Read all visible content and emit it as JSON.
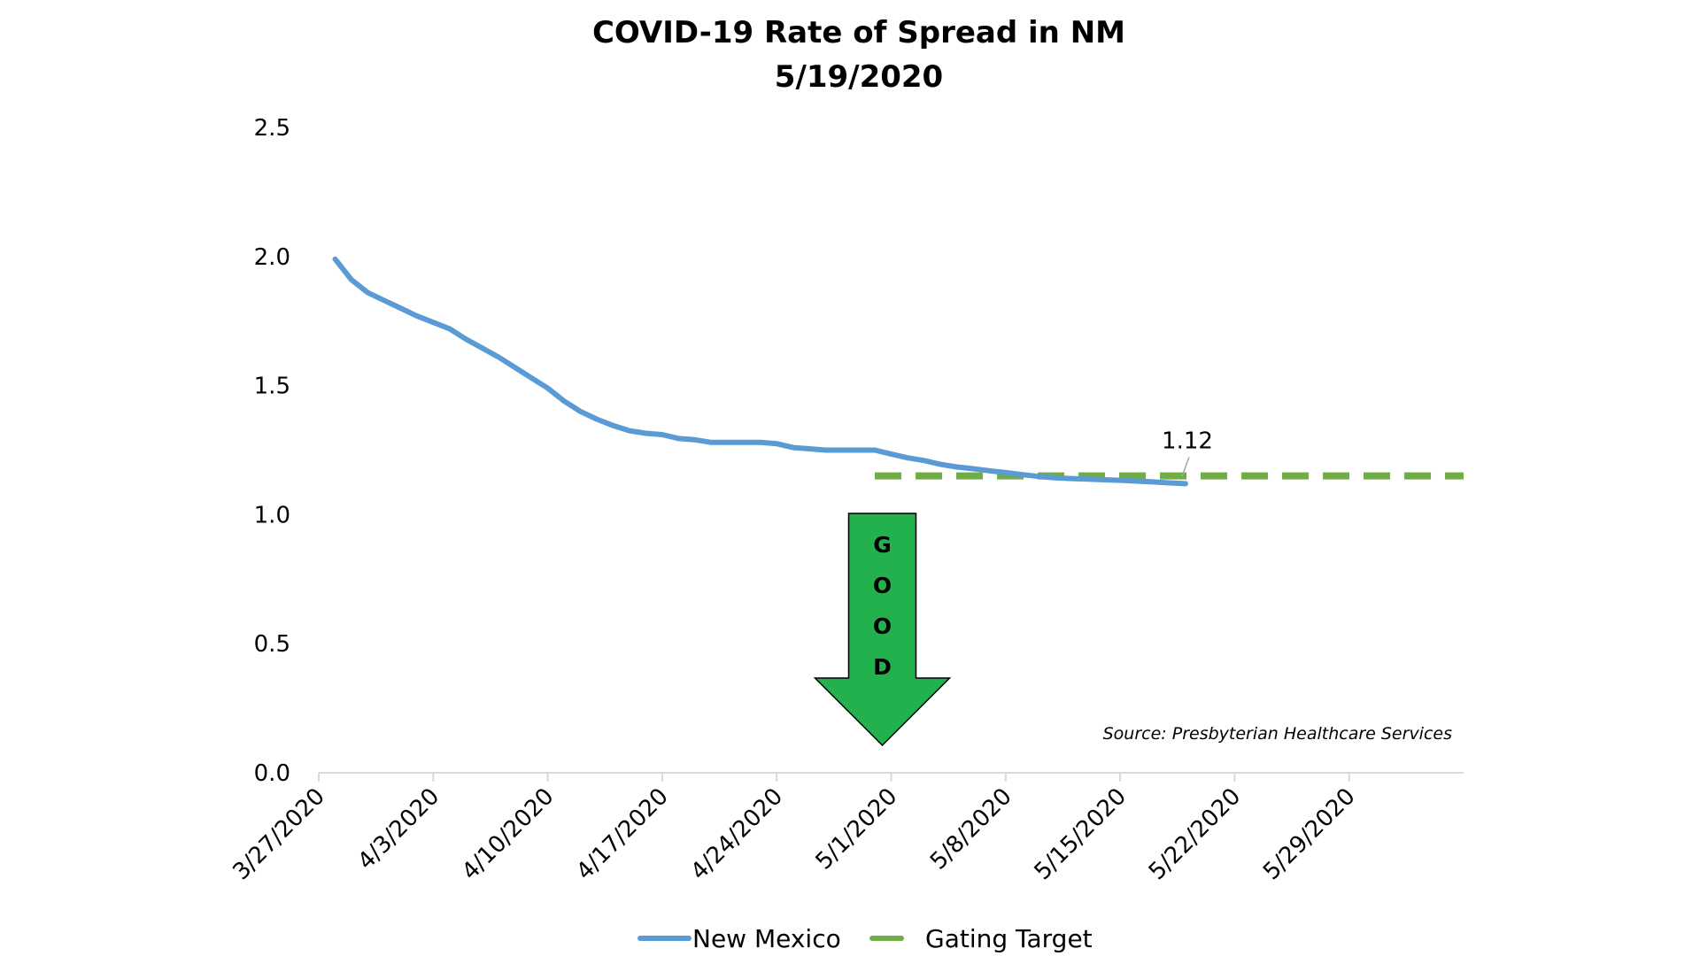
{
  "chart_data": {
    "type": "line",
    "title": "COVID-19 Rate of Spread in NM",
    "subtitle": "5/19/2020",
    "xlabel": "",
    "ylabel": "",
    "ylim": [
      0,
      2.5
    ],
    "yticks": [
      "0.0",
      "0.5",
      "1.0",
      "1.5",
      "2.0",
      "2.5"
    ],
    "xlim": [
      "3/27/2020",
      "6/5/2020"
    ],
    "xticks": [
      "3/27/2020",
      "4/3/2020",
      "4/10/2020",
      "4/17/2020",
      "4/24/2020",
      "5/1/2020",
      "5/8/2020",
      "5/15/2020",
      "5/22/2020",
      "5/29/2020"
    ],
    "grid": false,
    "legend_position": "bottom",
    "series": [
      {
        "name": "New Mexico",
        "color": "#5b9bd5",
        "style": "solid",
        "points": [
          [
            "3/28/2020",
            1.99
          ],
          [
            "3/29/2020",
            1.91
          ],
          [
            "3/30/2020",
            1.86
          ],
          [
            "3/31/2020",
            1.83
          ],
          [
            "4/1/2020",
            1.8
          ],
          [
            "4/2/2020",
            1.77
          ],
          [
            "4/3/2020",
            1.745
          ],
          [
            "4/4/2020",
            1.72
          ],
          [
            "4/5/2020",
            1.68
          ],
          [
            "4/6/2020",
            1.645
          ],
          [
            "4/7/2020",
            1.61
          ],
          [
            "4/8/2020",
            1.57
          ],
          [
            "4/9/2020",
            1.53
          ],
          [
            "4/10/2020",
            1.49
          ],
          [
            "4/11/2020",
            1.44
          ],
          [
            "4/12/2020",
            1.4
          ],
          [
            "4/13/2020",
            1.37
          ],
          [
            "4/14/2020",
            1.345
          ],
          [
            "4/15/2020",
            1.325
          ],
          [
            "4/16/2020",
            1.315
          ],
          [
            "4/17/2020",
            1.31
          ],
          [
            "4/18/2020",
            1.295
          ],
          [
            "4/19/2020",
            1.29
          ],
          [
            "4/20/2020",
            1.28
          ],
          [
            "4/21/2020",
            1.28
          ],
          [
            "4/22/2020",
            1.28
          ],
          [
            "4/23/2020",
            1.28
          ],
          [
            "4/24/2020",
            1.275
          ],
          [
            "4/25/2020",
            1.26
          ],
          [
            "4/26/2020",
            1.255
          ],
          [
            "4/27/2020",
            1.25
          ],
          [
            "4/28/2020",
            1.25
          ],
          [
            "4/29/2020",
            1.25
          ],
          [
            "4/30/2020",
            1.25
          ],
          [
            "5/1/2020",
            1.235
          ],
          [
            "5/2/2020",
            1.22
          ],
          [
            "5/3/2020",
            1.21
          ],
          [
            "5/4/2020",
            1.195
          ],
          [
            "5/5/2020",
            1.185
          ],
          [
            "5/6/2020",
            1.178
          ],
          [
            "5/7/2020",
            1.17
          ],
          [
            "5/8/2020",
            1.163
          ],
          [
            "5/9/2020",
            1.155
          ],
          [
            "5/10/2020",
            1.148
          ],
          [
            "5/11/2020",
            1.143
          ],
          [
            "5/12/2020",
            1.14
          ],
          [
            "5/13/2020",
            1.138
          ],
          [
            "5/14/2020",
            1.135
          ],
          [
            "5/15/2020",
            1.133
          ],
          [
            "5/16/2020",
            1.13
          ],
          [
            "5/17/2020",
            1.127
          ],
          [
            "5/18/2020",
            1.123
          ],
          [
            "5/19/2020",
            1.12
          ]
        ]
      },
      {
        "name": "Gating Target",
        "color": "#70ad47",
        "style": "dashed",
        "points": [
          [
            "4/30/2020",
            1.15
          ],
          [
            "6/5/2020",
            1.15
          ]
        ]
      }
    ],
    "annotations": {
      "last_value_label": "1.12",
      "source": "Source: Presbyterian Healthcare Services",
      "arrow_label": [
        "G",
        "O",
        "O",
        "D"
      ],
      "arrow_color": "#22b14c"
    }
  }
}
